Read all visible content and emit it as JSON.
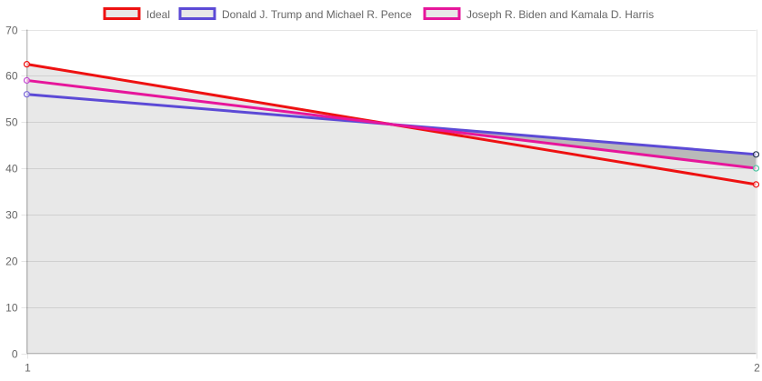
{
  "chart_data": {
    "type": "line",
    "x": [
      "1",
      "2"
    ],
    "ylim": [
      0,
      70
    ],
    "yticks": [
      0,
      10,
      20,
      30,
      40,
      50,
      60,
      70
    ],
    "grid": true,
    "legend_position": "top",
    "series": [
      {
        "name": "Ideal",
        "values": [
          62.5,
          36.5
        ],
        "color": "#ee1111",
        "fill": "#e8e8e8"
      },
      {
        "name": "Donald J. Trump and Michael R. Pence",
        "values": [
          56,
          43
        ],
        "color": "#5c4ad6",
        "fill": "#b9b9b9"
      },
      {
        "name": "Joseph R. Biden and Kamala D. Harris",
        "values": [
          59,
          40
        ],
        "color": "#e6169b",
        "fill": "#e8e8e8"
      }
    ],
    "point_colors": {
      "Ideal": [
        "#ee1111",
        "#ee1111"
      ],
      "Donald J. Trump and Michael R. Pence": [
        "#7b68d8",
        "#2b3a55"
      ],
      "Joseph R. Biden and Kamala D. Harris": [
        "#c24ad1",
        "#4fc3a1"
      ]
    }
  }
}
